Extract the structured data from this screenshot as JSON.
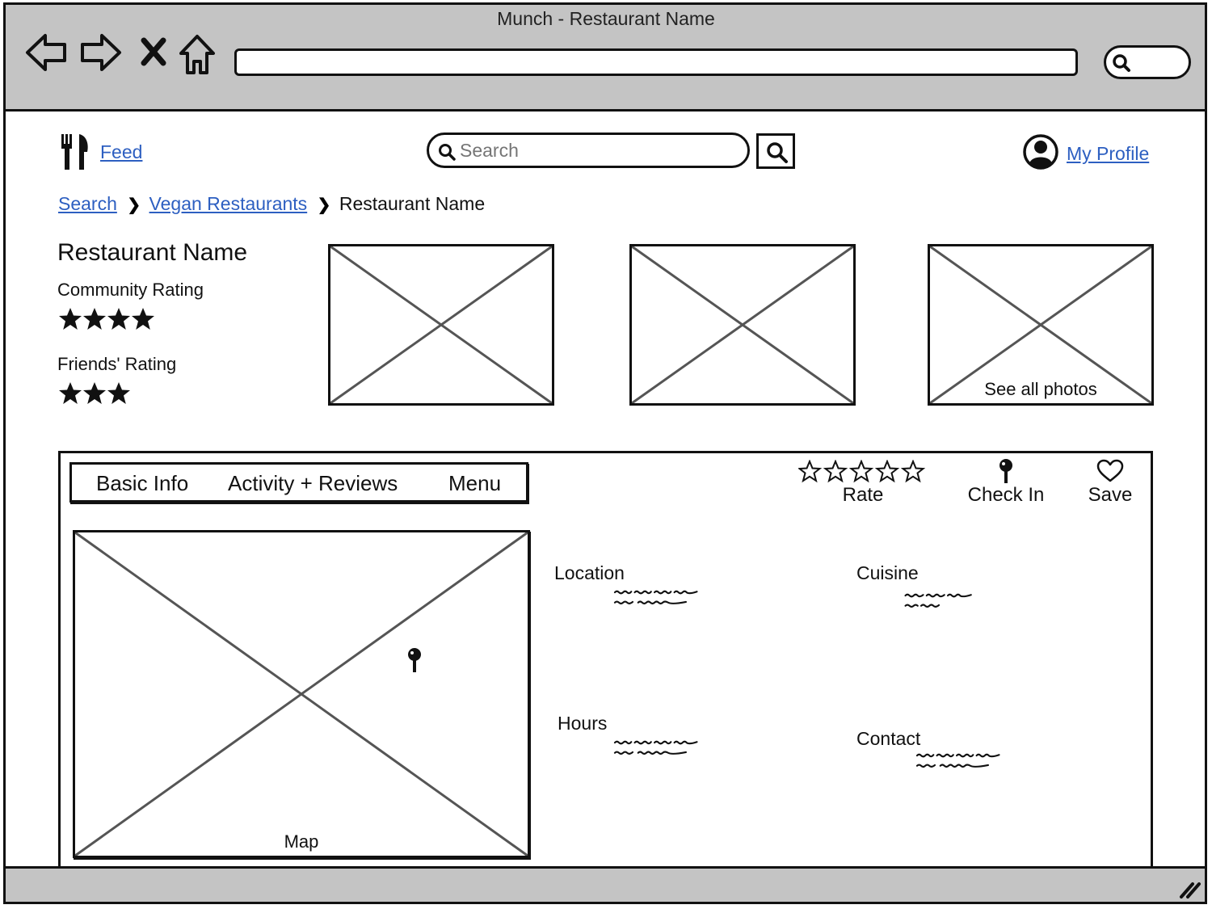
{
  "browser": {
    "window_title": "Munch - Restaurant Name"
  },
  "header": {
    "feed_label": "Feed",
    "search_placeholder": "Search",
    "profile_label": "My Profile"
  },
  "breadcrumb": {
    "items": [
      "Search",
      "Vegan Restaurants",
      "Restaurant Name"
    ]
  },
  "restaurant": {
    "name": "Restaurant Name",
    "community_rating_label": "Community Rating",
    "community_rating_stars": 4,
    "friends_rating_label": "Friends' Rating",
    "friends_rating_stars": 3,
    "see_all_photos_label": "See all photos"
  },
  "tabs": {
    "basic_info": "Basic Info",
    "activity_reviews": "Activity + Reviews",
    "menu": "Menu"
  },
  "actions": {
    "rate_label": "Rate",
    "check_in_label": "Check In",
    "save_label": "Save"
  },
  "details": {
    "map_label": "Map",
    "location_label": "Location",
    "cuisine_label": "Cuisine",
    "hours_label": "Hours",
    "contact_label": "Contact"
  }
}
